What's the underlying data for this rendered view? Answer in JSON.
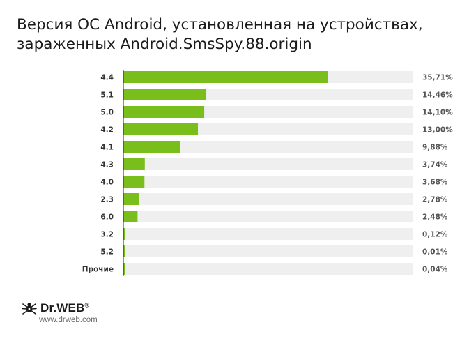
{
  "header": {
    "title_line1": "Версия ОС Android, установленная на устройствах,",
    "title_line2": "зараженных Android.SmsSpy.88.origin"
  },
  "chart_data": {
    "type": "bar",
    "orientation": "horizontal",
    "categories": [
      "4.4",
      "5.1",
      "5.0",
      "4.2",
      "4.1",
      "4.3",
      "4.0",
      "2.3",
      "6.0",
      "3.2",
      "5.2",
      "Прочие"
    ],
    "values": [
      35.71,
      14.46,
      14.1,
      13.0,
      9.88,
      3.74,
      3.68,
      2.78,
      2.48,
      0.12,
      0.01,
      0.04
    ],
    "value_labels": [
      "35,71%",
      "14,46%",
      "14,10%",
      "13,00%",
      "9,88%",
      "3,74%",
      "3,68%",
      "2,78%",
      "2,48%",
      "0,12%",
      "0,01%",
      "0,04%"
    ],
    "xlim": [
      0,
      50
    ],
    "colors": {
      "bar": "#79be1a",
      "track": "#efefef",
      "axis": "#222222",
      "label": "#333333",
      "value_label": "#555555"
    }
  },
  "footer": {
    "brand": "Dr.WEB",
    "brand_mark": "®",
    "url": "www.drweb.com"
  }
}
